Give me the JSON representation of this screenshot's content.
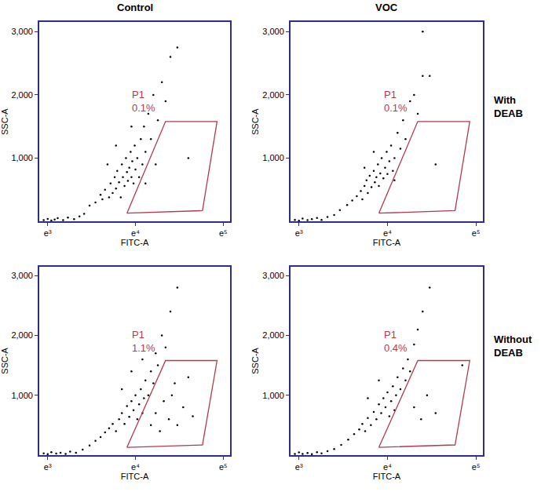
{
  "chart_data": {
    "type": "scatter",
    "columns": [
      "Control",
      "VOC"
    ],
    "rows": [
      "With DEAB",
      "Without DEAB"
    ],
    "x_label": "FITC-A",
    "y_label": "SSC-A",
    "log": "x",
    "xlim": [
      800,
      120000
    ],
    "xticks": [
      {
        "value": 1000,
        "label": "e³"
      },
      {
        "value": 10000,
        "label": "e⁴"
      },
      {
        "value": 100000,
        "label": "e⁵"
      }
    ],
    "ylim": [
      0,
      3150
    ],
    "yticks": [
      {
        "value": 1000,
        "label": "1,000"
      },
      {
        "value": 2000,
        "label": "2,000"
      },
      {
        "value": 3000,
        "label": "3,000"
      }
    ],
    "grid": false,
    "color": "#000000",
    "marker": "dot",
    "gate_color": "#b03a4e",
    "gate_vertices": [
      [
        8000,
        130
      ],
      [
        22000,
        1580
      ],
      [
        85000,
        1580
      ],
      [
        58000,
        170
      ],
      [
        8000,
        130
      ]
    ],
    "panels": [
      {
        "gate_name": "P1",
        "gate_value": 0.1,
        "gate_value_label": "0.1%",
        "points": [
          [
            900,
            20
          ],
          [
            1000,
            40
          ],
          [
            1100,
            15
          ],
          [
            1200,
            30
          ],
          [
            1300,
            50
          ],
          [
            1500,
            20
          ],
          [
            1700,
            60
          ],
          [
            2000,
            35
          ],
          [
            2300,
            80
          ],
          [
            2600,
            120
          ],
          [
            3000,
            250
          ],
          [
            3500,
            300
          ],
          [
            4000,
            420
          ],
          [
            4200,
            350
          ],
          [
            4500,
            500
          ],
          [
            5000,
            380
          ],
          [
            5200,
            600
          ],
          [
            5500,
            450
          ],
          [
            5800,
            700
          ],
          [
            6000,
            520
          ],
          [
            6200,
            800
          ],
          [
            6500,
            620
          ],
          [
            6800,
            380
          ],
          [
            7000,
            900
          ],
          [
            7200,
            700
          ],
          [
            7500,
            560
          ],
          [
            7800,
            1000
          ],
          [
            8000,
            780
          ],
          [
            8200,
            640
          ],
          [
            8500,
            850
          ],
          [
            8800,
            1100
          ],
          [
            9000,
            700
          ],
          [
            9200,
            950
          ],
          [
            9500,
            600
          ],
          [
            9800,
            1200
          ],
          [
            10000,
            820
          ],
          [
            10500,
            1000
          ],
          [
            11000,
            700
          ],
          [
            11500,
            1300
          ],
          [
            12000,
            900
          ],
          [
            12500,
            1500
          ],
          [
            13000,
            1100
          ],
          [
            14000,
            1700
          ],
          [
            15000,
            1300
          ],
          [
            16000,
            2000
          ],
          [
            18000,
            1600
          ],
          [
            20000,
            2200
          ],
          [
            22000,
            1900
          ],
          [
            25000,
            2600
          ],
          [
            30000,
            2750
          ],
          [
            17000,
            900
          ],
          [
            6000,
            1200
          ],
          [
            4800,
            900
          ],
          [
            9000,
            1500
          ],
          [
            13000,
            600
          ],
          [
            40000,
            1000
          ]
        ]
      },
      {
        "gate_name": "P1",
        "gate_value": 0.1,
        "gate_value_label": "0.1%",
        "points": [
          [
            900,
            25
          ],
          [
            1000,
            10
          ],
          [
            1100,
            45
          ],
          [
            1250,
            20
          ],
          [
            1400,
            35
          ],
          [
            1600,
            55
          ],
          [
            1800,
            25
          ],
          [
            2100,
            70
          ],
          [
            2500,
            100
          ],
          [
            2900,
            180
          ],
          [
            3500,
            260
          ],
          [
            4000,
            330
          ],
          [
            4500,
            400
          ],
          [
            5000,
            480
          ],
          [
            5200,
            350
          ],
          [
            5500,
            560
          ],
          [
            5800,
            650
          ],
          [
            6000,
            450
          ],
          [
            6300,
            720
          ],
          [
            6600,
            540
          ],
          [
            7000,
            800
          ],
          [
            7200,
            620
          ],
          [
            7500,
            700
          ],
          [
            7800,
            900
          ],
          [
            8000,
            560
          ],
          [
            8300,
            760
          ],
          [
            8600,
            1000
          ],
          [
            9000,
            680
          ],
          [
            9400,
            850
          ],
          [
            9800,
            1100
          ],
          [
            10000,
            750
          ],
          [
            10500,
            950
          ],
          [
            11000,
            1200
          ],
          [
            11500,
            800
          ],
          [
            12000,
            1000
          ],
          [
            13000,
            1400
          ],
          [
            14000,
            1150
          ],
          [
            15000,
            1600
          ],
          [
            16000,
            1300
          ],
          [
            18000,
            1900
          ],
          [
            20000,
            2000
          ],
          [
            22000,
            1700
          ],
          [
            25000,
            2300
          ],
          [
            30000,
            2300
          ],
          [
            25000,
            3000
          ],
          [
            7000,
            1100
          ],
          [
            5500,
            850
          ],
          [
            12000,
            650
          ],
          [
            35000,
            900
          ]
        ]
      },
      {
        "gate_name": "P1",
        "gate_value": 1.1,
        "gate_value_label": "1.1%",
        "points": [
          [
            900,
            30
          ],
          [
            1000,
            15
          ],
          [
            1100,
            50
          ],
          [
            1250,
            25
          ],
          [
            1400,
            40
          ],
          [
            1600,
            20
          ],
          [
            1800,
            60
          ],
          [
            2100,
            40
          ],
          [
            2500,
            90
          ],
          [
            3000,
            160
          ],
          [
            3500,
            240
          ],
          [
            4000,
            300
          ],
          [
            4500,
            380
          ],
          [
            5000,
            450
          ],
          [
            5500,
            520
          ],
          [
            6000,
            400
          ],
          [
            6500,
            600
          ],
          [
            7000,
            700
          ],
          [
            7500,
            520
          ],
          [
            8000,
            820
          ],
          [
            8500,
            640
          ],
          [
            9000,
            900
          ],
          [
            9500,
            750
          ],
          [
            10000,
            1000
          ],
          [
            10500,
            600
          ],
          [
            11000,
            850
          ],
          [
            11500,
            1100
          ],
          [
            12000,
            700
          ],
          [
            12500,
            950
          ],
          [
            13000,
            1250
          ],
          [
            14000,
            1000
          ],
          [
            15000,
            1400
          ],
          [
            16000,
            1200
          ],
          [
            17000,
            1700
          ],
          [
            18000,
            1500
          ],
          [
            20000,
            2000
          ],
          [
            22000,
            1800
          ],
          [
            25000,
            2400
          ],
          [
            30000,
            2800
          ],
          [
            28000,
            1200
          ],
          [
            15000,
            500
          ],
          [
            17000,
            700
          ],
          [
            19000,
            400
          ],
          [
            21000,
            900
          ],
          [
            24000,
            600
          ],
          [
            26000,
            1000
          ],
          [
            30000,
            500
          ],
          [
            35000,
            800
          ],
          [
            40000,
            1300
          ],
          [
            45000,
            650
          ],
          [
            9000,
            1400
          ],
          [
            7000,
            1100
          ],
          [
            12000,
            1600
          ]
        ]
      },
      {
        "gate_name": "P1",
        "gate_value": 0.4,
        "gate_value_label": "0.4%",
        "points": [
          [
            900,
            20
          ],
          [
            1000,
            45
          ],
          [
            1100,
            20
          ],
          [
            1250,
            35
          ],
          [
            1400,
            15
          ],
          [
            1600,
            50
          ],
          [
            1800,
            30
          ],
          [
            2100,
            65
          ],
          [
            2500,
            100
          ],
          [
            3000,
            170
          ],
          [
            3600,
            260
          ],
          [
            4200,
            350
          ],
          [
            4800,
            430
          ],
          [
            5200,
            520
          ],
          [
            5600,
            400
          ],
          [
            6000,
            620
          ],
          [
            6500,
            500
          ],
          [
            7000,
            720
          ],
          [
            7500,
            600
          ],
          [
            8000,
            850
          ],
          [
            8500,
            700
          ],
          [
            9000,
            950
          ],
          [
            9500,
            800
          ],
          [
            10000,
            1050
          ],
          [
            10500,
            650
          ],
          [
            11000,
            900
          ],
          [
            11500,
            1150
          ],
          [
            12000,
            750
          ],
          [
            12500,
            1000
          ],
          [
            13000,
            1300
          ],
          [
            14000,
            1100
          ],
          [
            15000,
            1450
          ],
          [
            16000,
            1250
          ],
          [
            17000,
            1600
          ],
          [
            18000,
            1400
          ],
          [
            20000,
            1850
          ],
          [
            22000,
            2100
          ],
          [
            25000,
            2400
          ],
          [
            30000,
            2800
          ],
          [
            20000,
            800
          ],
          [
            24000,
            600
          ],
          [
            28000,
            1000
          ],
          [
            35000,
            700
          ],
          [
            70000,
            1500
          ],
          [
            8000,
            1250
          ],
          [
            6000,
            950
          ]
        ]
      }
    ]
  }
}
